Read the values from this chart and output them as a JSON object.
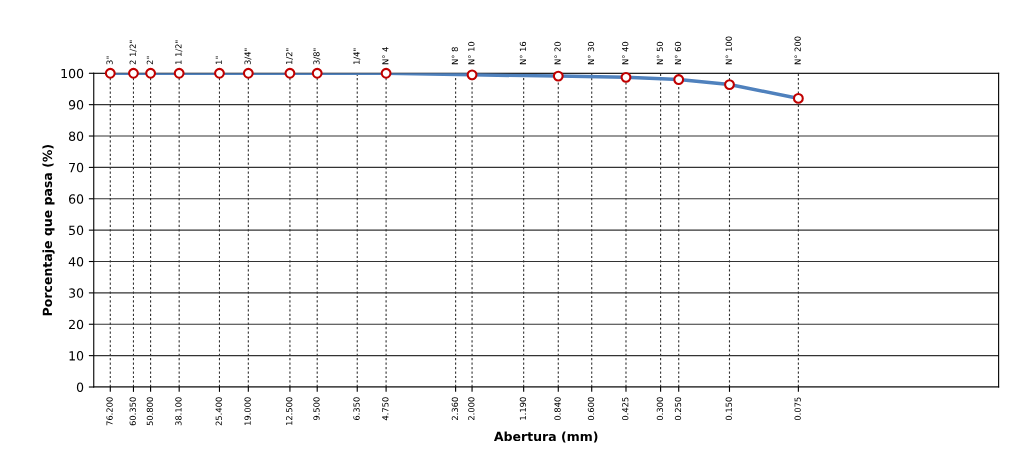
{
  "chart_data": {
    "type": "line",
    "xlabel": "Abertura (mm)",
    "ylabel": "Porcentaje que pasa (%)",
    "log": "x",
    "xlim": [
      90,
      0.01
    ],
    "ylim": [
      0,
      100
    ],
    "xticks": [
      {
        "value": 76.2,
        "label": "76.200"
      },
      {
        "value": 60.35,
        "label": "60.350"
      },
      {
        "value": 50.8,
        "label": "50.800"
      },
      {
        "value": 38.1,
        "label": "38.100"
      },
      {
        "value": 25.4,
        "label": "25.400"
      },
      {
        "value": 19.0,
        "label": "19.000"
      },
      {
        "value": 12.5,
        "label": "12.500"
      },
      {
        "value": 9.5,
        "label": "9.500"
      },
      {
        "value": 6.35,
        "label": "6.350"
      },
      {
        "value": 4.75,
        "label": "4.750"
      },
      {
        "value": 2.36,
        "label": "2.360"
      },
      {
        "value": 2.0,
        "label": "2.000"
      },
      {
        "value": 1.19,
        "label": "1.190"
      },
      {
        "value": 0.84,
        "label": "0.840"
      },
      {
        "value": 0.6,
        "label": "0.600"
      },
      {
        "value": 0.425,
        "label": "0.425"
      },
      {
        "value": 0.3,
        "label": "0.300"
      },
      {
        "value": 0.25,
        "label": "0.250"
      },
      {
        "value": 0.15,
        "label": "0.150"
      },
      {
        "value": 0.075,
        "label": "0.075"
      }
    ],
    "annotations": [
      {
        "text": "3\"",
        "x": 76.2,
        "y": 100
      },
      {
        "text": "2 1/2\"",
        "x": 60.35,
        "y": 100
      },
      {
        "text": "2\"",
        "x": 50.8,
        "y": 100
      },
      {
        "text": "1 1/2\"",
        "x": 38.1,
        "y": 100
      },
      {
        "text": "1\"",
        "x": 25.4,
        "y": 100
      },
      {
        "text": "3/4\"",
        "x": 19.0,
        "y": 100
      },
      {
        "text": "1/2\"",
        "x": 12.5,
        "y": 100
      },
      {
        "text": "3/8\"",
        "x": 9.5,
        "y": 100
      },
      {
        "text": "1/4\"",
        "x": 6.35,
        "y": 100
      }
    ],
    "ref_lines": [
      {
        "axis": "x",
        "value": 76.2,
        "line_style": "dashed"
      },
      {
        "axis": "x",
        "value": 60.35,
        "line_style": "dashed"
      },
      {
        "axis": "x",
        "value": 50.8,
        "line_style": "dashed"
      },
      {
        "axis": "x",
        "value": 38.1,
        "line_style": "dashed"
      },
      {
        "axis": "x",
        "value": 25.4,
        "line_style": "dashed"
      },
      {
        "axis": "x",
        "value": 19.0,
        "line_style": "dashed"
      },
      {
        "axis": "x",
        "value": 12.5,
        "line_style": "dashed"
      },
      {
        "axis": "x",
        "value": 9.5,
        "line_style": "dashed"
      },
      {
        "axis": "x",
        "value": 6.35,
        "line_style": "dashed"
      },
      {
        "axis": "x",
        "value": 4.75,
        "label": "N° 4",
        "line_style": "dashed"
      },
      {
        "axis": "x",
        "value": 2.36,
        "label": "N° 8",
        "line_style": "dashed"
      },
      {
        "axis": "x",
        "value": 2.0,
        "label": "N° 10",
        "line_style": "dashed"
      },
      {
        "axis": "x",
        "value": 1.19,
        "label": "N° 16",
        "line_style": "dashed"
      },
      {
        "axis": "x",
        "value": 0.84,
        "label": "N° 20",
        "line_style": "dashed"
      },
      {
        "axis": "x",
        "value": 0.6,
        "label": "N° 30",
        "line_style": "dashed"
      },
      {
        "axis": "x",
        "value": 0.425,
        "label": "N° 40",
        "line_style": "dashed"
      },
      {
        "axis": "x",
        "value": 0.3,
        "label": "N° 50",
        "line_style": "dashed"
      },
      {
        "axis": "x",
        "value": 0.25,
        "label": "N° 60",
        "line_style": "dashed"
      },
      {
        "axis": "x",
        "value": 0.15,
        "label": "N° 100",
        "line_style": "dashed"
      },
      {
        "axis": "x",
        "value": 0.075,
        "label": "N° 200",
        "line_style": "dashed"
      }
    ],
    "yticks": [
      0,
      10,
      20,
      30,
      40,
      50,
      60,
      70,
      80,
      90,
      100
    ],
    "grid": "y",
    "marker": "circle",
    "line_style": "solid",
    "series": [
      {
        "color": "#4f81bd",
        "colors": [
          "#c00000",
          "#c00000",
          "#c00000",
          "#c00000",
          "#c00000",
          "#c00000",
          "#c00000",
          "#c00000",
          "#c00000",
          "#c00000",
          "#c00000",
          "#c00000",
          "#c00000",
          "#c00000",
          "#c00000"
        ],
        "x": [
          76.2,
          60.35,
          50.8,
          38.1,
          25.4,
          19.0,
          12.5,
          9.5,
          4.75,
          2.0,
          0.84,
          0.425,
          0.25,
          0.15,
          0.075
        ],
        "values": [
          100,
          100,
          100,
          100,
          100,
          100,
          100,
          100,
          100,
          99.5,
          99.1,
          98.7,
          98.0,
          96.4,
          92.0
        ]
      }
    ]
  }
}
